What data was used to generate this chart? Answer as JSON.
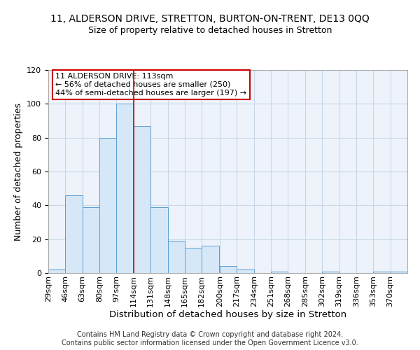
{
  "title": "11, ALDERSON DRIVE, STRETTON, BURTON-ON-TRENT, DE13 0QQ",
  "subtitle": "Size of property relative to detached houses in Stretton",
  "xlabel": "Distribution of detached houses by size in Stretton",
  "ylabel": "Number of detached properties",
  "bin_labels": [
    "29sqm",
    "46sqm",
    "63sqm",
    "80sqm",
    "97sqm",
    "114sqm",
    "131sqm",
    "148sqm",
    "165sqm",
    "182sqm",
    "200sqm",
    "217sqm",
    "234sqm",
    "251sqm",
    "268sqm",
    "285sqm",
    "302sqm",
    "319sqm",
    "336sqm",
    "353sqm",
    "370sqm"
  ],
  "bin_edges": [
    29,
    46,
    63,
    80,
    97,
    114,
    131,
    148,
    165,
    182,
    200,
    217,
    234,
    251,
    268,
    285,
    302,
    319,
    336,
    353,
    370
  ],
  "bar_heights": [
    2,
    46,
    39,
    80,
    100,
    87,
    39,
    19,
    15,
    16,
    4,
    2,
    0,
    1,
    0,
    0,
    1,
    0,
    0,
    1,
    1
  ],
  "bar_color": "#d6e8f7",
  "bar_edge_color": "#5b9fd4",
  "grid_color": "#c8d8e8",
  "background_color": "#eef3fb",
  "property_line_x": 114,
  "property_line_color": "#cc0000",
  "annotation_text": "11 ALDERSON DRIVE: 113sqm\n← 56% of detached houses are smaller (250)\n44% of semi-detached houses are larger (197) →",
  "annotation_box_color": "#ffffff",
  "annotation_box_edge_color": "#cc0000",
  "ylim": [
    0,
    120
  ],
  "yticks": [
    0,
    20,
    40,
    60,
    80,
    100,
    120
  ],
  "footer_text": "Contains HM Land Registry data © Crown copyright and database right 2024.\nContains public sector information licensed under the Open Government Licence v3.0.",
  "title_fontsize": 10,
  "subtitle_fontsize": 9,
  "xlabel_fontsize": 9.5,
  "ylabel_fontsize": 9,
  "annotation_fontsize": 8,
  "footer_fontsize": 7,
  "tick_fontsize": 8
}
